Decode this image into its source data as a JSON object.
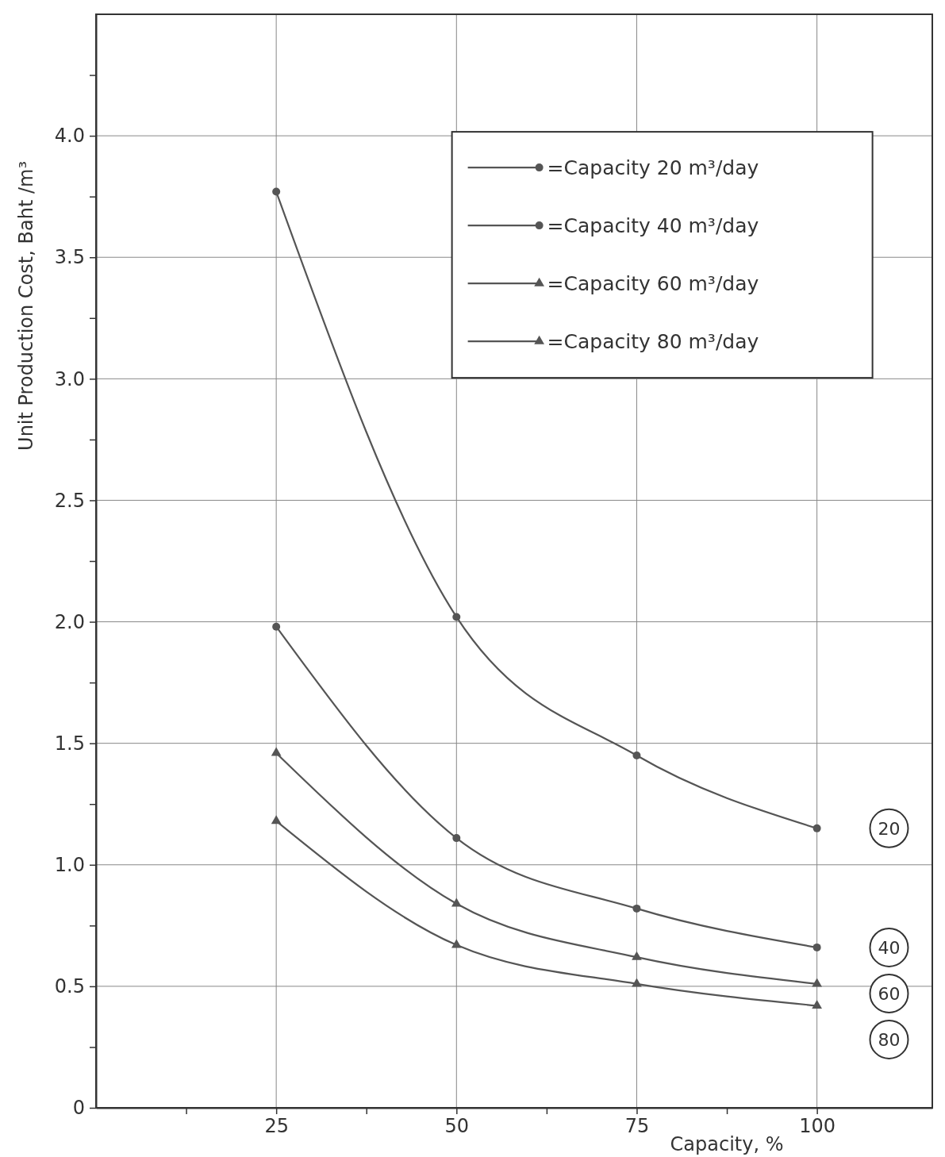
{
  "chart_data": {
    "type": "line",
    "xlabel": "Capacity, %",
    "ylabel": "Unit Production Cost, Baht /m³",
    "x": [
      25,
      50,
      75,
      100
    ],
    "series": [
      {
        "name": "=Capacity 20 m³/day",
        "color": "#555555",
        "values": [
          3.77,
          2.02,
          1.45,
          1.15
        ],
        "marker": "circle"
      },
      {
        "name": "=Capacity 40 m³/day",
        "color": "#555555",
        "values": [
          1.98,
          1.11,
          0.82,
          0.66
        ],
        "marker": "circle"
      },
      {
        "name": "=Capacity 60 m³/day",
        "color": "#555555",
        "values": [
          1.46,
          0.84,
          0.62,
          0.51
        ],
        "marker": "triangle"
      },
      {
        "name": "=Capacity 80 m³/day",
        "color": "#555555",
        "values": [
          1.18,
          0.67,
          0.51,
          0.42
        ],
        "marker": "triangle"
      }
    ],
    "xlim": [
      0,
      116
    ],
    "xticks": [
      {
        "value": 12.5,
        "label": null
      },
      25,
      {
        "value": 37.5,
        "label": null
      },
      50,
      {
        "value": 62.5,
        "label": null
      },
      75,
      {
        "value": 87.5,
        "label": null
      },
      100
    ],
    "ylim": [
      0,
      4.5
    ],
    "yticks": [
      0,
      {
        "value": 0.25,
        "label": null
      },
      0.5,
      {
        "value": 0.75,
        "label": null
      },
      {
        "value": 1,
        "label": "1.0"
      },
      {
        "value": 1.25,
        "label": null
      },
      1.5,
      {
        "value": 1.75,
        "label": null
      },
      {
        "value": 2,
        "label": "2.0"
      },
      {
        "value": 2.25,
        "label": null
      },
      2.5,
      {
        "value": 2.75,
        "label": null
      },
      {
        "value": 3,
        "label": "3.0"
      },
      {
        "value": 3.25,
        "label": null
      },
      3.5,
      {
        "value": 3.75,
        "label": null
      },
      {
        "value": 4,
        "label": "4.0"
      },
      {
        "value": 4.25,
        "label": null
      }
    ],
    "grid": true,
    "legend": "top right",
    "line_style": "solid",
    "annotations": [
      "20",
      "40",
      "60",
      "80"
    ]
  }
}
